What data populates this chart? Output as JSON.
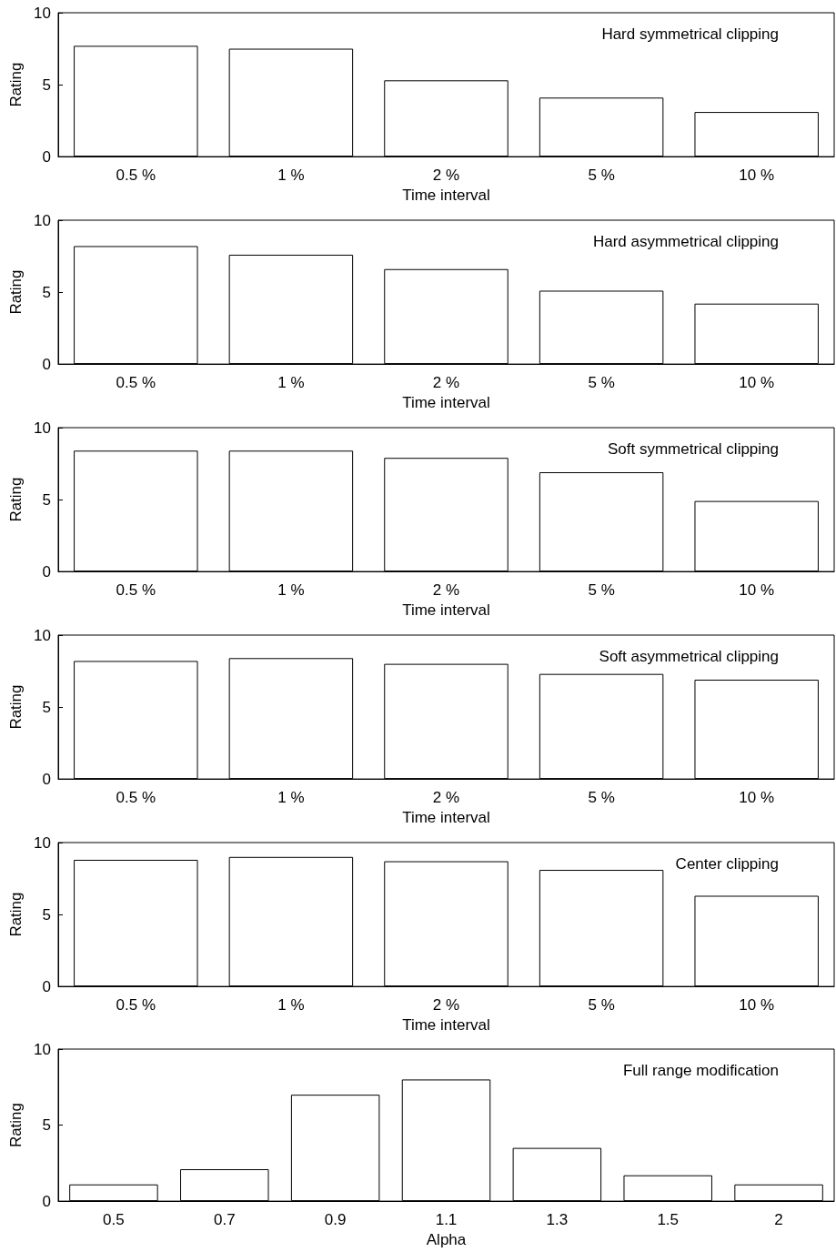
{
  "chart_data": [
    {
      "type": "bar",
      "title": "Hard symmetrical clipping",
      "xlabel": "Time interval",
      "ylabel": "Rating",
      "categories": [
        "0.5 %",
        "1 %",
        "2 %",
        "5 %",
        "10 %"
      ],
      "values": [
        7.7,
        7.5,
        5.3,
        4.1,
        3.1
      ],
      "color": "#ffffff",
      "ylim": [
        0,
        10
      ],
      "yticks": [
        0,
        5,
        10
      ],
      "grid": false
    },
    {
      "type": "bar",
      "title": "Hard asymmetrical clipping",
      "xlabel": "Time interval",
      "ylabel": "Rating",
      "categories": [
        "0.5 %",
        "1 %",
        "2 %",
        "5 %",
        "10 %"
      ],
      "values": [
        8.2,
        7.6,
        6.6,
        5.1,
        4.2
      ],
      "color": "#ffffff",
      "ylim": [
        0,
        10
      ],
      "yticks": [
        0,
        5,
        10
      ],
      "grid": false
    },
    {
      "type": "bar",
      "title": "Soft symmetrical clipping",
      "xlabel": "Time interval",
      "ylabel": "Rating",
      "categories": [
        "0.5 %",
        "1 %",
        "2 %",
        "5 %",
        "10 %"
      ],
      "values": [
        8.4,
        8.4,
        7.9,
        6.9,
        4.9
      ],
      "color": "#ffffff",
      "ylim": [
        0,
        10
      ],
      "yticks": [
        0,
        5,
        10
      ],
      "grid": false
    },
    {
      "type": "bar",
      "title": "Soft asymmetrical clipping",
      "xlabel": "Time interval",
      "ylabel": "Rating",
      "categories": [
        "0.5 %",
        "1 %",
        "2 %",
        "5 %",
        "10 %"
      ],
      "values": [
        8.2,
        8.4,
        8.0,
        7.3,
        6.9
      ],
      "color": "#ffffff",
      "ylim": [
        0,
        10
      ],
      "yticks": [
        0,
        5,
        10
      ],
      "grid": false
    },
    {
      "type": "bar",
      "title": "Center clipping",
      "xlabel": "Time interval",
      "ylabel": "Rating",
      "categories": [
        "0.5 %",
        "1 %",
        "2 %",
        "5 %",
        "10 %"
      ],
      "values": [
        8.8,
        9.0,
        8.7,
        8.1,
        6.3
      ],
      "color": "#ffffff",
      "ylim": [
        0,
        10
      ],
      "yticks": [
        0,
        5,
        10
      ],
      "grid": false
    },
    {
      "type": "bar",
      "title": "Full range modification",
      "xlabel": "Alpha",
      "ylabel": "Rating",
      "categories": [
        "0.5",
        "0.7",
        "0.9",
        "1.1",
        "1.3",
        "1.5",
        "2"
      ],
      "values": [
        1.1,
        2.1,
        7.0,
        8.0,
        3.5,
        1.7,
        1.1
      ],
      "color": "#ffffff",
      "ylim": [
        0,
        10
      ],
      "yticks": [
        0,
        5,
        10
      ],
      "grid": false
    }
  ]
}
